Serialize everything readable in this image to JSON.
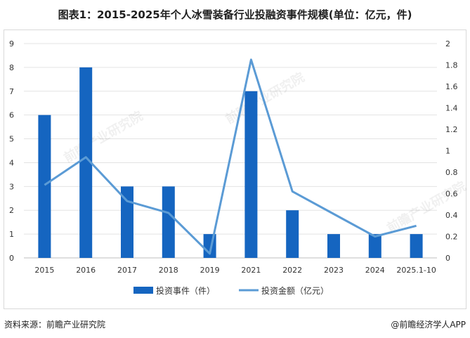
{
  "title": "图表1：2015-2025年个人冰雪装备行业投融资事件规模(单位：亿元，件)",
  "source": "资料来源：前瞻产业研究院",
  "credit": "@前瞻经济学人APP",
  "watermark": "前瞻产业研究院",
  "colors": {
    "bar": "#1565c0",
    "line": "#5b9bd5"
  },
  "chart_data": {
    "type": "bar",
    "categories": [
      "2015",
      "2016",
      "2017",
      "2018",
      "2019",
      "2021",
      "2022",
      "2023",
      "2024",
      "2025.1-10"
    ],
    "series": [
      {
        "name": "投资事件（件）",
        "type": "bar",
        "axis": "left",
        "values": [
          6,
          8,
          3,
          3,
          1,
          7,
          2,
          1,
          1,
          1
        ]
      },
      {
        "name": "投资金额（亿元）",
        "type": "line",
        "axis": "right",
        "values": [
          0.68,
          0.94,
          0.53,
          0.42,
          0.04,
          1.85,
          0.62,
          0.41,
          0.2,
          0.3
        ]
      }
    ],
    "left_axis": {
      "ylim": [
        0,
        9
      ],
      "ticks": [
        "0",
        "1",
        "2",
        "3",
        "4",
        "5",
        "6",
        "7",
        "8",
        "9"
      ]
    },
    "right_axis": {
      "ylim": [
        0,
        2
      ],
      "ticks": [
        "0",
        "0.2",
        "0.4",
        "0.6",
        "0.8",
        "1",
        "1.2",
        "1.4",
        "1.6",
        "1.8",
        "2"
      ]
    },
    "grid": "horizontal",
    "legend_position": "bottom"
  }
}
